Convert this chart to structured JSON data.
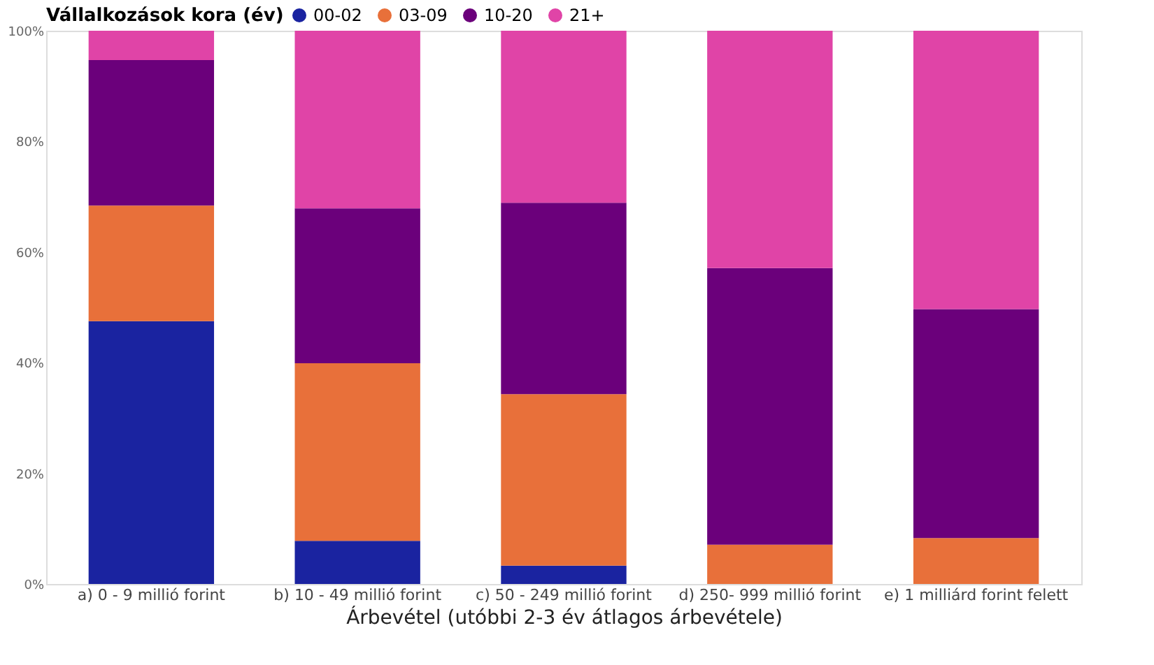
{
  "chart_data": {
    "type": "bar",
    "stacked": true,
    "legend_title": "Vállalkozások kora (év)",
    "xlabel": "Árbevétel (utóbbi 2-3 év átlagos árbevétele)",
    "categories": [
      "a) 0 - 9 millió forint",
      "b) 10 - 49 millió forint",
      "c) 50 - 249 millió forint",
      "d) 250- 999 millió forint",
      "e) 1 milliárd forint felett"
    ],
    "series": [
      {
        "name": "00-02",
        "color": "#1a23a0",
        "values": [
          47.5,
          7.8,
          3.3,
          0,
          0
        ]
      },
      {
        "name": "03-09",
        "color": "#e8703a",
        "values": [
          20.9,
          32.1,
          31.0,
          7.1,
          8.3
        ]
      },
      {
        "name": "10-20",
        "color": "#6b007b",
        "values": [
          26.3,
          28.0,
          34.6,
          50.0,
          41.4
        ]
      },
      {
        "name": "21+",
        "color": "#e044a7",
        "values": [
          5.3,
          32.1,
          31.1,
          42.9,
          50.3
        ]
      }
    ],
    "ylim": [
      0,
      100
    ],
    "yticks": [
      {
        "value": 0,
        "label": "0%"
      },
      {
        "value": 20,
        "label": "20%"
      },
      {
        "value": 40,
        "label": "40%"
      },
      {
        "value": 60,
        "label": "60%"
      },
      {
        "value": 80,
        "label": "80%"
      },
      {
        "value": 100,
        "label": "100%"
      }
    ],
    "grid": false,
    "legend": "top left"
  }
}
